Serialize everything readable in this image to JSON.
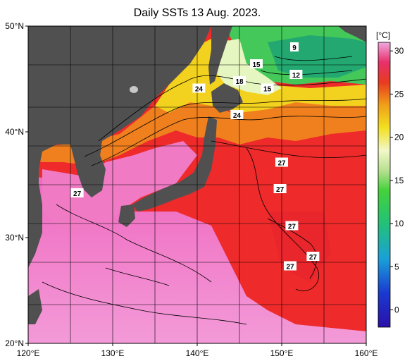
{
  "title": "Daily SSTs 13 Aug. 2023.",
  "colorbar": {
    "unit": "[°C]",
    "ticks": [
      "30",
      "25",
      "20",
      "15",
      "10",
      "5",
      "0"
    ],
    "tick_values": [
      30,
      25,
      20,
      15,
      10,
      5,
      0
    ],
    "vmin": -2,
    "vmax": 31
  },
  "map": {
    "lon_ticks": [
      "120°E",
      "130°E",
      "140°E",
      "150°E",
      "160°E"
    ],
    "lat_ticks": [
      "50°N",
      "40°N",
      "30°N",
      "20°N"
    ],
    "lon_range": [
      120,
      160
    ],
    "lat_range": [
      20,
      50
    ],
    "colors": {
      "land": "#505050",
      "warm": "#ee2a2a",
      "hot": "#f070c8",
      "cold": "#33bb44"
    }
  },
  "contour_labels": [
    {
      "text": "9",
      "lon": 151.5,
      "lat": 48.0
    },
    {
      "text": "15",
      "lon": 147.0,
      "lat": 46.4
    },
    {
      "text": "12",
      "lon": 151.7,
      "lat": 45.4
    },
    {
      "text": "18",
      "lon": 145.0,
      "lat": 44.8
    },
    {
      "text": "15",
      "lon": 148.3,
      "lat": 44.1
    },
    {
      "text": "24",
      "lon": 140.2,
      "lat": 44.1
    },
    {
      "text": "24",
      "lon": 144.7,
      "lat": 41.6
    },
    {
      "text": "27",
      "lon": 150.0,
      "lat": 37.1
    },
    {
      "text": "27",
      "lon": 149.8,
      "lat": 34.6
    },
    {
      "text": "27",
      "lon": 125.8,
      "lat": 34.2
    },
    {
      "text": "27",
      "lon": 151.2,
      "lat": 31.1
    },
    {
      "text": "27",
      "lon": 153.7,
      "lat": 28.2
    },
    {
      "text": "27",
      "lon": 151.0,
      "lat": 27.3
    }
  ]
}
